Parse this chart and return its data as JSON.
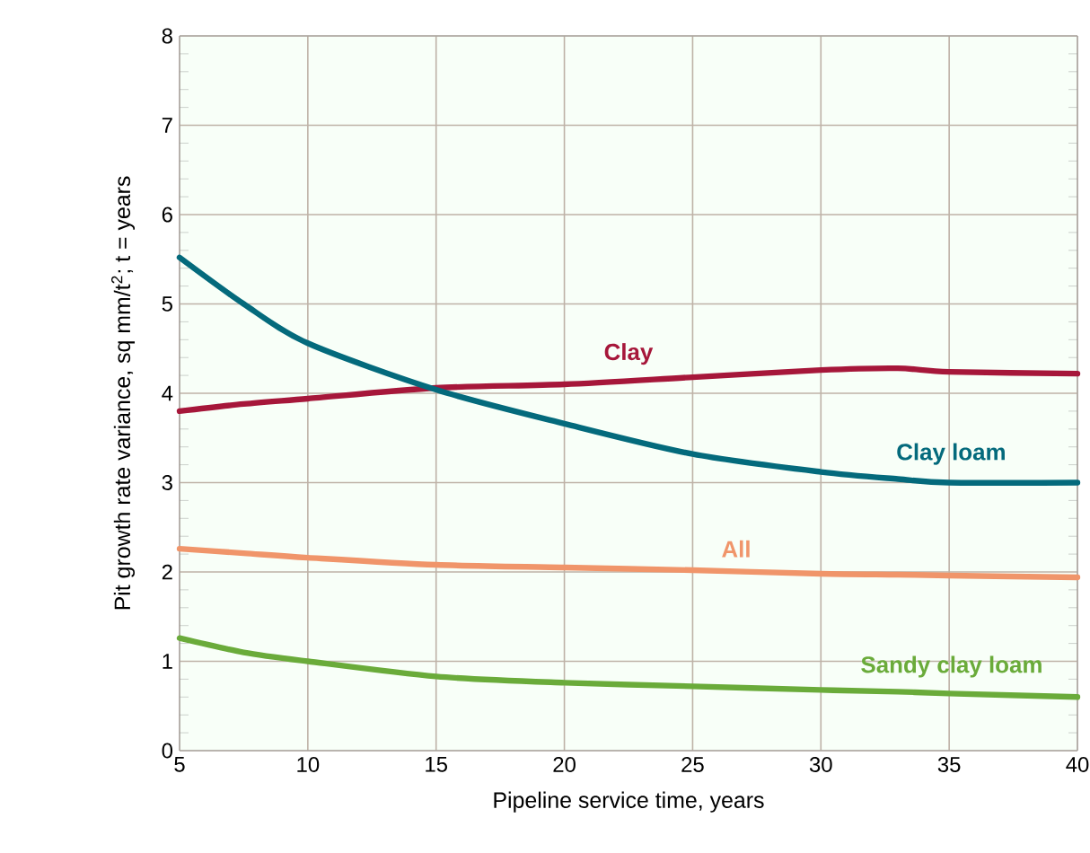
{
  "chart_data": {
    "type": "line",
    "xlabel": "Pipeline service time, years",
    "ylabel": "Pit growth rate variance, sq mm/t$^{2}$; t = years",
    "x": [
      5,
      7.5,
      10,
      15,
      20,
      25,
      30,
      33,
      35,
      40
    ],
    "series": [
      {
        "name": "Clay",
        "color": "#a6173a",
        "values": [
          3.8,
          3.88,
          3.94,
          4.06,
          4.1,
          4.18,
          4.26,
          4.28,
          4.24,
          4.22
        ]
      },
      {
        "name": "Clay loam",
        "color": "#046a7c",
        "values": [
          5.52,
          5.0,
          4.56,
          4.04,
          3.66,
          3.32,
          3.12,
          3.04,
          3.0,
          3.0
        ]
      },
      {
        "name": "All",
        "color": "#f0956a",
        "values": [
          2.26,
          2.21,
          2.16,
          2.08,
          2.05,
          2.02,
          1.98,
          1.97,
          1.96,
          1.94
        ]
      },
      {
        "name": "Sandy clay loam",
        "color": "#6aab3a",
        "values": [
          1.26,
          1.1,
          1.0,
          0.83,
          0.76,
          0.72,
          0.68,
          0.66,
          0.64,
          0.6
        ]
      }
    ],
    "xlim": [
      5,
      40
    ],
    "ylim": [
      0,
      8
    ],
    "xticks": [
      5,
      10,
      15,
      20,
      25,
      30,
      35,
      40
    ],
    "yticks": [
      0,
      1,
      2,
      3,
      4,
      5,
      6,
      7,
      8
    ],
    "grid": true,
    "marker": "none",
    "line_style": "solid"
  }
}
